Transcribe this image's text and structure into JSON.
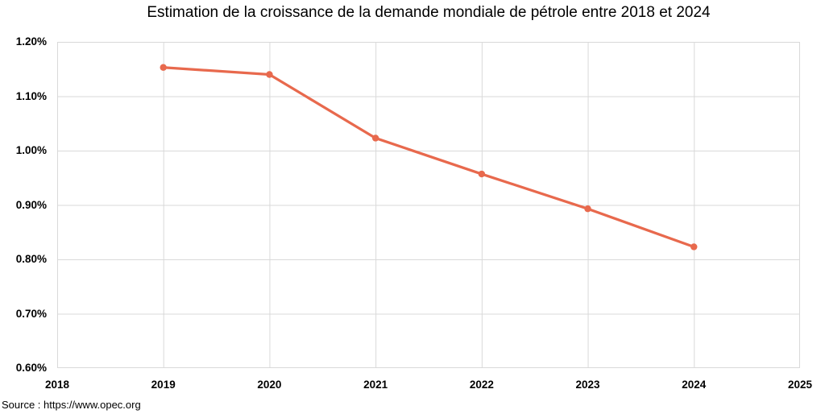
{
  "chart_data": {
    "type": "line",
    "title": "Estimation de la croissance de la demande mondiale de pétrole entre 2018 et 2024",
    "source": "Source : https://www.opec.org",
    "xlabel": "",
    "ylabel": "",
    "x": [
      2019,
      2020,
      2021,
      2022,
      2023,
      2024
    ],
    "values": [
      1.153,
      1.14,
      1.023,
      0.957,
      0.893,
      0.823
    ],
    "unit": "%",
    "xlim": [
      2018,
      2025
    ],
    "ylim": [
      0.6,
      1.2
    ],
    "grid": true,
    "legend": false,
    "xticks": [
      {
        "value": 2018,
        "label": "2018"
      },
      {
        "value": 2019,
        "label": "2019"
      },
      {
        "value": 2020,
        "label": "2020"
      },
      {
        "value": 2021,
        "label": "2021"
      },
      {
        "value": 2022,
        "label": "2022"
      },
      {
        "value": 2023,
        "label": "2023"
      },
      {
        "value": 2024,
        "label": "2024"
      },
      {
        "value": 2025,
        "label": "2025"
      }
    ],
    "yticks": [
      {
        "value": 1.2,
        "label": "1.20%"
      },
      {
        "value": 1.1,
        "label": "1.10%"
      },
      {
        "value": 1.0,
        "label": "1.00%"
      },
      {
        "value": 0.9,
        "label": "0.90%"
      },
      {
        "value": 0.8,
        "label": "0.80%"
      },
      {
        "value": 0.7,
        "label": "0.70%"
      },
      {
        "value": 0.6,
        "label": "0.60%"
      }
    ],
    "colors": {
      "line": "#E8694D",
      "grid": "#D9D9D9",
      "text": "#000000",
      "background": "#FFFFFF"
    }
  }
}
